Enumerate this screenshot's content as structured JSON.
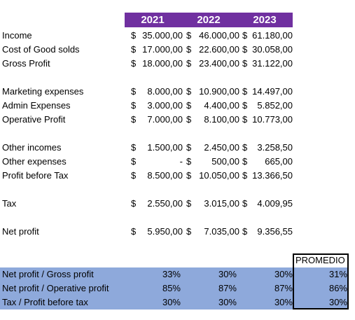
{
  "header": {
    "years": [
      "2021",
      "2022",
      "2023"
    ]
  },
  "table": {
    "sections": [
      {
        "rows": [
          {
            "label": "Income",
            "cells": [
              {
                "symbol": "$",
                "amount": "35.000,00"
              },
              {
                "symbol": "$",
                "amount": "46.000,00"
              },
              {
                "symbol": "$",
                "amount": "61.180,00"
              }
            ]
          },
          {
            "label": "Cost of Good solds",
            "cells": [
              {
                "symbol": "$",
                "amount": "17.000,00"
              },
              {
                "symbol": "$",
                "amount": "22.600,00"
              },
              {
                "symbol": "$",
                "amount": "30.058,00"
              }
            ]
          },
          {
            "label": "Gross Profit",
            "cells": [
              {
                "symbol": "$",
                "amount": "18.000,00"
              },
              {
                "symbol": "$",
                "amount": "23.400,00"
              },
              {
                "symbol": "$",
                "amount": "31.122,00"
              }
            ]
          }
        ]
      },
      {
        "rows": [
          {
            "label": "Marketing expenses",
            "cells": [
              {
                "symbol": "$",
                "amount": "8.000,00"
              },
              {
                "symbol": "$",
                "amount": "10.900,00"
              },
              {
                "symbol": "$",
                "amount": "14.497,00"
              }
            ]
          },
          {
            "label": "Admin Expenses",
            "cells": [
              {
                "symbol": "$",
                "amount": "3.000,00"
              },
              {
                "symbol": "$",
                "amount": "4.400,00"
              },
              {
                "symbol": "$",
                "amount": "5.852,00"
              }
            ]
          },
          {
            "label": "Operative Profit",
            "cells": [
              {
                "symbol": "$",
                "amount": "7.000,00"
              },
              {
                "symbol": "$",
                "amount": "8.100,00"
              },
              {
                "symbol": "$",
                "amount": "10.773,00"
              }
            ]
          }
        ]
      },
      {
        "rows": [
          {
            "label": "Other incomes",
            "cells": [
              {
                "symbol": "$",
                "amount": "1.500,00"
              },
              {
                "symbol": "$",
                "amount": "2.450,00"
              },
              {
                "symbol": "$",
                "amount": "3.258,50"
              }
            ]
          },
          {
            "label": "Other expenses",
            "cells": [
              {
                "symbol": "$",
                "amount": "-"
              },
              {
                "symbol": "$",
                "amount": "500,00"
              },
              {
                "symbol": "$",
                "amount": "665,00"
              }
            ]
          },
          {
            "label": "Profit before Tax",
            "cells": [
              {
                "symbol": "$",
                "amount": "8.500,00"
              },
              {
                "symbol": "$",
                "amount": "10.050,00"
              },
              {
                "symbol": "$",
                "amount": "13.366,50"
              }
            ]
          }
        ]
      },
      {
        "rows": [
          {
            "label": "Tax",
            "cells": [
              {
                "symbol": "$",
                "amount": "2.550,00"
              },
              {
                "symbol": "$",
                "amount": "3.015,00"
              },
              {
                "symbol": "$",
                "amount": "4.009,95"
              }
            ]
          }
        ]
      },
      {
        "rows": [
          {
            "label": "Net profit",
            "cells": [
              {
                "symbol": "$",
                "amount": "5.950,00"
              },
              {
                "symbol": "$",
                "amount": "7.035,00"
              },
              {
                "symbol": "$",
                "amount": "9.356,55"
              }
            ]
          }
        ]
      }
    ]
  },
  "ratios": {
    "header": "PROMEDIO",
    "rows": [
      {
        "label": "Net profit / Gross profit",
        "values": [
          "33%",
          "30%",
          "30%",
          "31%"
        ]
      },
      {
        "label": "Net profit / Operative profit",
        "values": [
          "85%",
          "87%",
          "87%",
          "86%"
        ]
      },
      {
        "label": "Tax / Profit before tax",
        "values": [
          "30%",
          "30%",
          "30%",
          "30%"
        ]
      }
    ]
  }
}
